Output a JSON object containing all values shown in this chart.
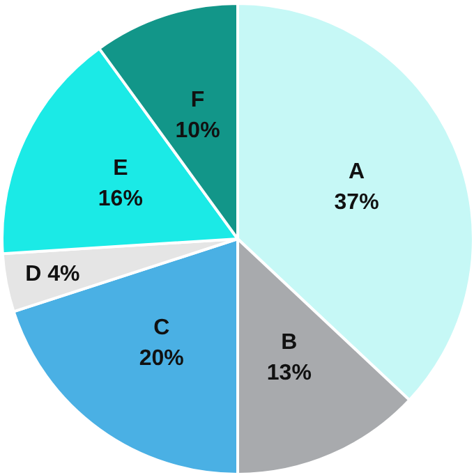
{
  "chart_data": {
    "type": "pie",
    "categories": [
      "A",
      "B",
      "C",
      "D",
      "E",
      "F"
    ],
    "values": [
      37,
      13,
      20,
      4,
      16,
      10
    ],
    "value_labels": [
      "37%",
      "13%",
      "20%",
      "4%",
      "16%",
      "10%"
    ],
    "colors": [
      "#c6f8f6",
      "#a8aaad",
      "#4ab0e4",
      "#e5e5e5",
      "#1beae6",
      "#129689"
    ]
  }
}
